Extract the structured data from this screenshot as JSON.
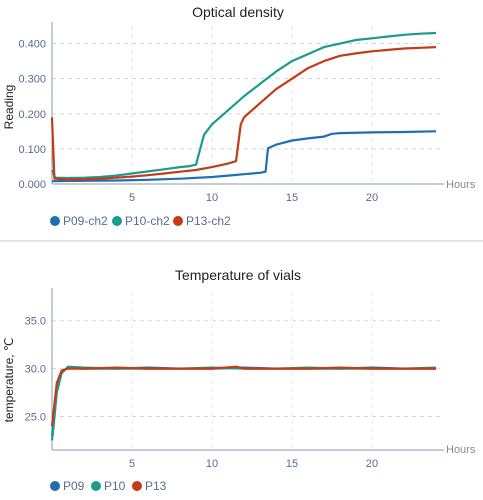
{
  "charts": {
    "od": {
      "title": "Optical density",
      "ylabel": "Reading",
      "xunit": "Hours",
      "xticks": [
        "5",
        "10",
        "15",
        "20"
      ],
      "yticks": [
        "0.000",
        "0.100",
        "0.200",
        "0.300",
        "0.400"
      ],
      "legend": [
        "P09-ch2",
        "P10-ch2",
        "P13-ch2"
      ]
    },
    "temp": {
      "title": "Temperature of vials",
      "ylabel": "temperature, ℃",
      "xunit": "Hours",
      "xticks": [
        "5",
        "10",
        "15",
        "20"
      ],
      "yticks": [
        "25.0",
        "30.0",
        "35.0"
      ],
      "legend": [
        "P09",
        "P10",
        "P13"
      ]
    }
  },
  "chart_data": [
    {
      "type": "line",
      "title": "Optical density",
      "xlabel": "Hours",
      "ylabel": "Reading",
      "xlim": [
        0,
        24.5
      ],
      "ylim": [
        0,
        0.45
      ],
      "grid": true,
      "legend_position": "bottom-left",
      "series": [
        {
          "name": "P09-ch2",
          "color": "#1f6fb2",
          "x": [
            0,
            2,
            4,
            6,
            8,
            10,
            11,
            12,
            13,
            13.35,
            13.5,
            14,
            15,
            16,
            17,
            17.5,
            18,
            20,
            22,
            24
          ],
          "y": [
            0.008,
            0.009,
            0.01,
            0.012,
            0.015,
            0.02,
            0.024,
            0.028,
            0.032,
            0.035,
            0.102,
            0.112,
            0.124,
            0.13,
            0.135,
            0.143,
            0.145,
            0.147,
            0.148,
            0.15
          ]
        },
        {
          "name": "P10-ch2",
          "color": "#1a9b8c",
          "x": [
            0,
            0.2,
            1,
            2,
            3,
            4,
            5,
            6,
            7,
            8,
            8.5,
            9,
            9.5,
            10,
            11,
            12,
            13,
            14,
            15,
            16,
            17,
            18,
            19,
            20,
            21,
            22,
            23,
            24
          ],
          "y": [
            0.04,
            0.018,
            0.017,
            0.018,
            0.02,
            0.024,
            0.03,
            0.036,
            0.042,
            0.048,
            0.05,
            0.055,
            0.14,
            0.17,
            0.21,
            0.25,
            0.285,
            0.32,
            0.35,
            0.37,
            0.39,
            0.4,
            0.41,
            0.415,
            0.42,
            0.425,
            0.428,
            0.43
          ]
        },
        {
          "name": "P13-ch2",
          "color": "#c63a17",
          "x": [
            0,
            0.15,
            1,
            2,
            3,
            4,
            5,
            6,
            7,
            8,
            9,
            10,
            11,
            11.5,
            11.8,
            12,
            13,
            14,
            15,
            16,
            17,
            18,
            19,
            20,
            21,
            22,
            23,
            24
          ],
          "y": [
            0.19,
            0.015,
            0.013,
            0.013,
            0.015,
            0.018,
            0.021,
            0.025,
            0.03,
            0.035,
            0.04,
            0.048,
            0.058,
            0.065,
            0.17,
            0.19,
            0.23,
            0.27,
            0.3,
            0.33,
            0.35,
            0.365,
            0.372,
            0.378,
            0.382,
            0.386,
            0.388,
            0.39
          ]
        }
      ]
    },
    {
      "type": "line",
      "title": "Temperature of vials",
      "xlabel": "Hours",
      "ylabel": "temperature, ℃",
      "xlim": [
        0,
        24.5
      ],
      "ylim": [
        21.5,
        38
      ],
      "grid": true,
      "legend_position": "bottom-left",
      "series": [
        {
          "name": "P09",
          "color": "#1f6fb2",
          "x": [
            0,
            0.1,
            0.3,
            0.6,
            1,
            2,
            4,
            6,
            8,
            10,
            12,
            14,
            16,
            18,
            20,
            22,
            24
          ],
          "y": [
            23.0,
            24.5,
            28.0,
            29.6,
            30.1,
            30.0,
            30.0,
            30.1,
            30.0,
            30.0,
            30.1,
            30.0,
            30.0,
            30.0,
            30.1,
            30.0,
            30.0
          ]
        },
        {
          "name": "P10",
          "color": "#1a9b8c",
          "x": [
            0,
            0.1,
            0.3,
            0.6,
            1,
            2,
            4,
            6,
            8,
            10,
            12,
            14,
            16,
            18,
            20,
            22,
            24
          ],
          "y": [
            22.5,
            24.0,
            27.5,
            29.5,
            30.2,
            30.1,
            30.0,
            30.0,
            30.0,
            30.1,
            30.0,
            30.0,
            30.1,
            30.0,
            30.0,
            30.0,
            30.1
          ]
        },
        {
          "name": "P13",
          "color": "#c63a17",
          "x": [
            0,
            0.1,
            0.3,
            0.6,
            1,
            2,
            4,
            6,
            8,
            10,
            11.5,
            12,
            14,
            16,
            18,
            20,
            22,
            24
          ],
          "y": [
            24.0,
            25.5,
            28.5,
            29.8,
            30.0,
            30.0,
            30.1,
            30.0,
            30.0,
            30.0,
            30.2,
            30.0,
            30.0,
            30.0,
            30.1,
            30.0,
            30.0,
            30.0
          ]
        }
      ]
    }
  ]
}
